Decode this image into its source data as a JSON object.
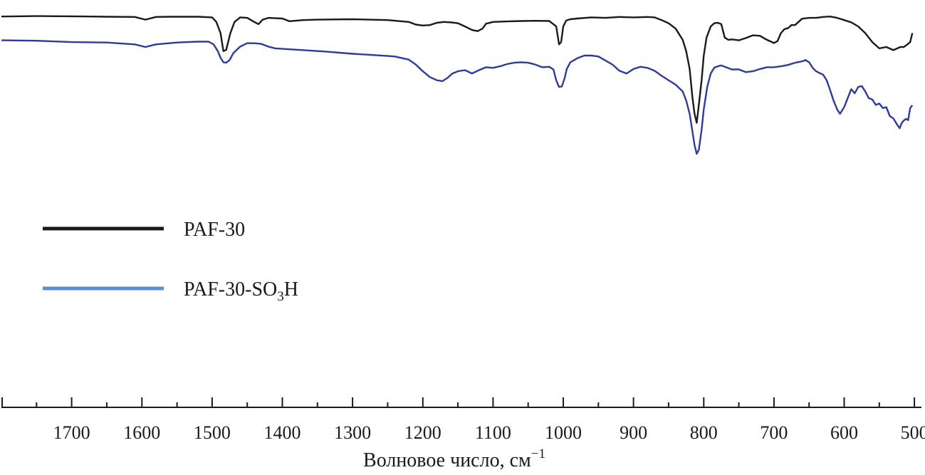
{
  "chart_data": {
    "type": "line",
    "title": "",
    "xlabel": "Волновое число, см",
    "xlabel_sup": "−1",
    "ylabel": "",
    "xlim": [
      1800,
      490
    ],
    "x_reversed": true,
    "ylim": [
      0,
      1
    ],
    "xticks": [
      1700,
      1600,
      1500,
      1400,
      1300,
      1200,
      1100,
      1000,
      900,
      800,
      700,
      600,
      500
    ],
    "grid": false,
    "legend_position": "left-middle",
    "series": [
      {
        "name": "PAF-30",
        "name_suffix": "",
        "name_sub": "",
        "color": "#1a1a1a",
        "legend_color": "#1a1a1a",
        "x": [
          1800,
          1750,
          1700,
          1650,
          1610,
          1595,
          1580,
          1560,
          1520,
          1500,
          1494,
          1488,
          1484,
          1480,
          1474,
          1468,
          1460,
          1450,
          1440,
          1434,
          1428,
          1420,
          1400,
          1390,
          1370,
          1350,
          1300,
          1250,
          1220,
          1210,
          1200,
          1190,
          1180,
          1170,
          1160,
          1150,
          1140,
          1130,
          1122,
          1115,
          1110,
          1100,
          1080,
          1060,
          1040,
          1020,
          1010,
          1006,
          1003,
          1000,
          996,
          990,
          980,
          960,
          940,
          920,
          900,
          880,
          870,
          860,
          850,
          840,
          830,
          825,
          820,
          816,
          813,
          810,
          807,
          803,
          800,
          796,
          790,
          785,
          780,
          775,
          770,
          765,
          760,
          750,
          740,
          730,
          720,
          710,
          700,
          695,
          690,
          685,
          680,
          675,
          670,
          660,
          650,
          640,
          630,
          620,
          610,
          600,
          590,
          580,
          570,
          560,
          550,
          540,
          530,
          520,
          515,
          510,
          506,
          503
        ],
        "y": [
          0.974,
          0.976,
          0.975,
          0.973,
          0.972,
          0.96,
          0.972,
          0.973,
          0.973,
          0.97,
          0.95,
          0.9,
          0.82,
          0.825,
          0.9,
          0.95,
          0.97,
          0.968,
          0.95,
          0.94,
          0.96,
          0.968,
          0.965,
          0.953,
          0.958,
          0.96,
          0.962,
          0.958,
          0.95,
          0.938,
          0.934,
          0.936,
          0.946,
          0.95,
          0.948,
          0.944,
          0.93,
          0.914,
          0.909,
          0.92,
          0.942,
          0.95,
          0.952,
          0.954,
          0.955,
          0.954,
          0.93,
          0.85,
          0.86,
          0.93,
          0.956,
          0.962,
          0.965,
          0.97,
          0.968,
          0.972,
          0.97,
          0.972,
          0.97,
          0.958,
          0.944,
          0.92,
          0.87,
          0.82,
          0.74,
          0.61,
          0.54,
          0.5,
          0.58,
          0.69,
          0.8,
          0.88,
          0.93,
          0.944,
          0.946,
          0.94,
          0.88,
          0.87,
          0.872,
          0.868,
          0.878,
          0.89,
          0.888,
          0.87,
          0.856,
          0.864,
          0.9,
          0.918,
          0.922,
          0.936,
          0.936,
          0.964,
          0.968,
          0.968,
          0.972,
          0.974,
          0.968,
          0.958,
          0.948,
          0.93,
          0.9,
          0.86,
          0.832,
          0.838,
          0.824,
          0.838,
          0.838,
          0.85,
          0.86,
          0.9
        ]
      },
      {
        "name": "PAF-30-SO",
        "name_suffix": "H",
        "name_sub": "3",
        "color": "#2e3a9c",
        "legend_color": "#5b8fd4",
        "x": [
          1800,
          1750,
          1700,
          1650,
          1610,
          1595,
          1580,
          1550,
          1520,
          1505,
          1498,
          1492,
          1488,
          1484,
          1480,
          1475,
          1470,
          1460,
          1450,
          1440,
          1430,
          1420,
          1410,
          1400,
          1380,
          1360,
          1340,
          1300,
          1280,
          1250,
          1240,
          1220,
          1210,
          1200,
          1190,
          1180,
          1172,
          1165,
          1158,
          1150,
          1140,
          1130,
          1120,
          1110,
          1100,
          1090,
          1080,
          1070,
          1060,
          1050,
          1040,
          1030,
          1020,
          1014,
          1010,
          1006,
          1002,
          998,
          995,
          990,
          980,
          970,
          960,
          950,
          940,
          930,
          920,
          910,
          900,
          890,
          880,
          870,
          860,
          850,
          840,
          830,
          825,
          820,
          816,
          813,
          810,
          807,
          803,
          800,
          795,
          790,
          785,
          780,
          775,
          770,
          760,
          750,
          740,
          730,
          720,
          710,
          700,
          690,
          680,
          670,
          660,
          655,
          650,
          645,
          640,
          635,
          630,
          625,
          620,
          615,
          610,
          606,
          600,
          595,
          590,
          585,
          580,
          575,
          570,
          565,
          560,
          555,
          550,
          545,
          540,
          535,
          530,
          525,
          521,
          518,
          515,
          512,
          509,
          506,
          503
        ],
        "y": [
          0.868,
          0.866,
          0.86,
          0.858,
          0.85,
          0.838,
          0.85,
          0.858,
          0.862,
          0.862,
          0.85,
          0.82,
          0.79,
          0.77,
          0.768,
          0.78,
          0.81,
          0.84,
          0.855,
          0.855,
          0.852,
          0.84,
          0.832,
          0.83,
          0.826,
          0.822,
          0.818,
          0.808,
          0.804,
          0.798,
          0.796,
          0.782,
          0.76,
          0.73,
          0.704,
          0.69,
          0.686,
          0.7,
          0.72,
          0.73,
          0.735,
          0.72,
          0.735,
          0.748,
          0.745,
          0.752,
          0.762,
          0.768,
          0.77,
          0.768,
          0.76,
          0.748,
          0.75,
          0.738,
          0.69,
          0.66,
          0.662,
          0.7,
          0.74,
          0.77,
          0.788,
          0.8,
          0.8,
          0.796,
          0.778,
          0.76,
          0.732,
          0.72,
          0.74,
          0.75,
          0.745,
          0.732,
          0.71,
          0.69,
          0.67,
          0.64,
          0.6,
          0.54,
          0.46,
          0.4,
          0.362,
          0.38,
          0.47,
          0.56,
          0.66,
          0.72,
          0.746,
          0.752,
          0.756,
          0.75,
          0.738,
          0.738,
          0.726,
          0.73,
          0.74,
          0.748,
          0.748,
          0.752,
          0.758,
          0.768,
          0.774,
          0.78,
          0.77,
          0.746,
          0.73,
          0.722,
          0.715,
          0.69,
          0.646,
          0.598,
          0.56,
          0.54,
          0.57,
          0.61,
          0.65,
          0.632,
          0.66,
          0.664,
          0.64,
          0.61,
          0.604,
          0.58,
          0.586,
          0.566,
          0.57,
          0.53,
          0.52,
          0.494,
          0.476,
          0.5,
          0.51,
          0.518,
          0.512,
          0.566,
          0.578
        ]
      }
    ]
  }
}
